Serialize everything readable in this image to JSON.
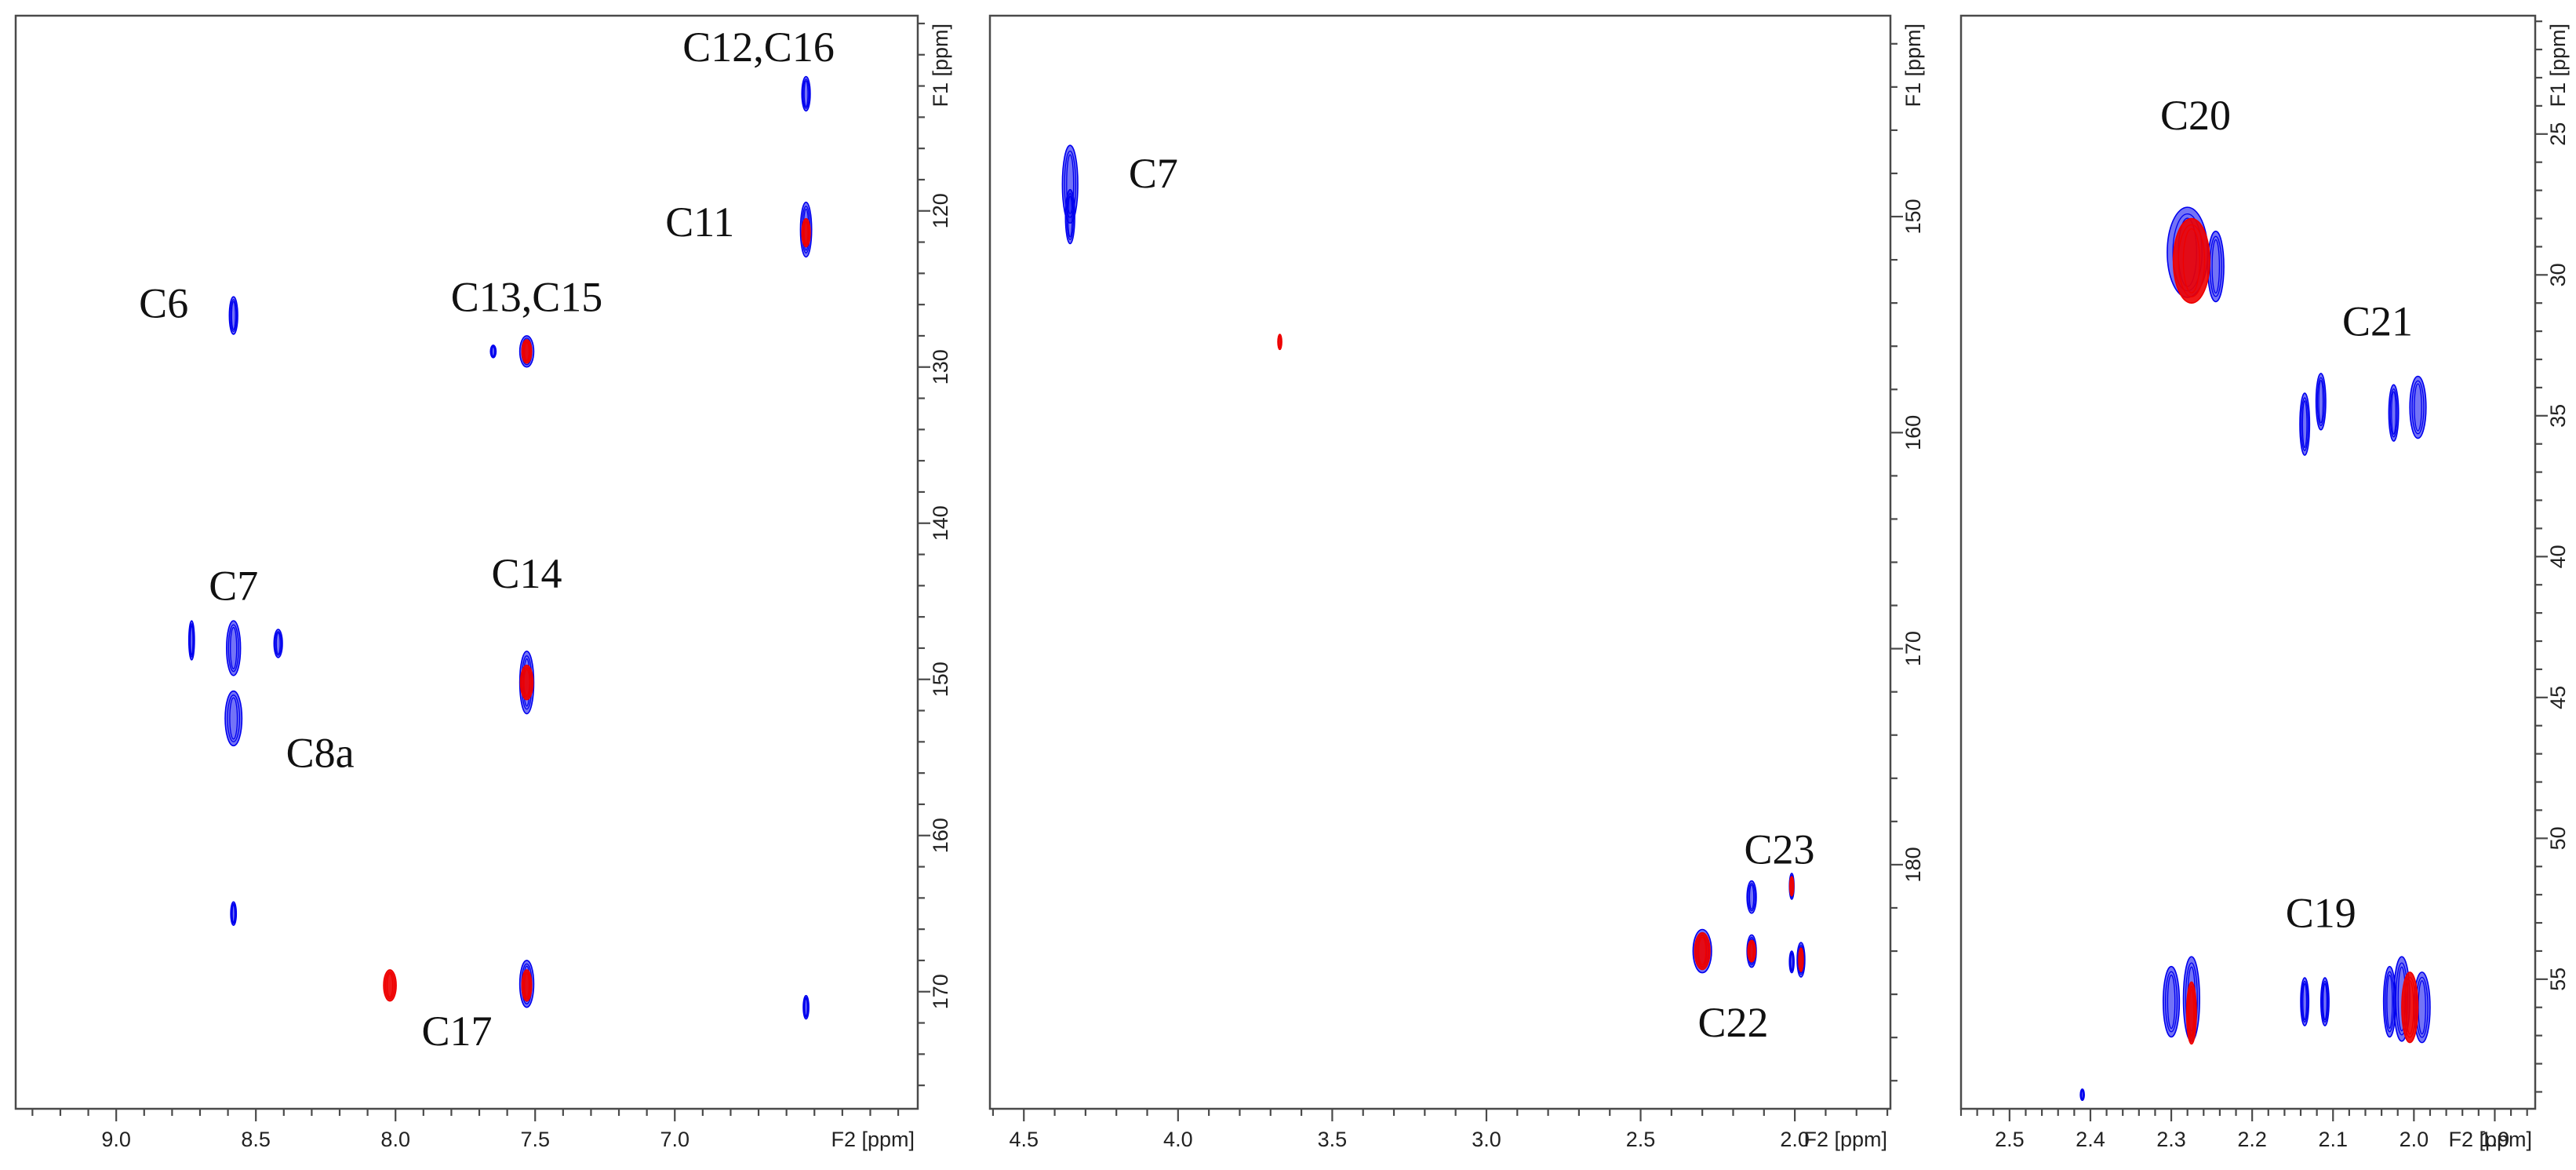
{
  "colors": {
    "positive": "#0000ee",
    "negative": "#ee0000",
    "frame": "#4a4a4a"
  },
  "chart_data": [
    {
      "type": "scatter",
      "panel": "left",
      "x_axis_label": "F2 [ppm]",
      "y_axis_label": "F1 [ppm]",
      "xlim": [
        9.36,
        6.13
      ],
      "ylim": [
        107.5,
        177.5
      ],
      "x_ticks": [
        "9.0",
        "8.5",
        "8.0",
        "7.5",
        "7.0"
      ],
      "y_ticks": [
        "120",
        "130",
        "140",
        "150",
        "160",
        "170"
      ],
      "grid": false,
      "series": [
        {
          "color": "blue",
          "points": [
            {
              "x": 6.53,
              "y": 112.5,
              "w": 0.03,
              "h": 2.2
            },
            {
              "x": 6.53,
              "y": 121.2,
              "w": 0.04,
              "h": 3.5
            },
            {
              "x": 8.58,
              "y": 126.7,
              "w": 0.03,
              "h": 2.4
            },
            {
              "x": 7.65,
              "y": 129.0,
              "w": 0.02,
              "h": 0.8
            },
            {
              "x": 7.53,
              "y": 129.0,
              "w": 0.05,
              "h": 2.0
            },
            {
              "x": 8.73,
              "y": 147.5,
              "w": 0.02,
              "h": 2.5
            },
            {
              "x": 8.58,
              "y": 148.0,
              "w": 0.05,
              "h": 3.5
            },
            {
              "x": 8.42,
              "y": 147.7,
              "w": 0.03,
              "h": 1.8
            },
            {
              "x": 8.58,
              "y": 152.5,
              "w": 0.06,
              "h": 3.5
            },
            {
              "x": 7.53,
              "y": 150.2,
              "w": 0.05,
              "h": 4.0
            },
            {
              "x": 8.58,
              "y": 165.0,
              "w": 0.02,
              "h": 1.5
            },
            {
              "x": 7.53,
              "y": 169.5,
              "w": 0.05,
              "h": 3.0
            },
            {
              "x": 6.53,
              "y": 171.0,
              "w": 0.02,
              "h": 1.5
            }
          ]
        },
        {
          "color": "red",
          "points": [
            {
              "x": 6.53,
              "y": 121.4,
              "w": 0.03,
              "h": 1.8
            },
            {
              "x": 7.53,
              "y": 129.0,
              "w": 0.035,
              "h": 1.5
            },
            {
              "x": 7.53,
              "y": 150.2,
              "w": 0.045,
              "h": 2.2
            },
            {
              "x": 8.02,
              "y": 169.6,
              "w": 0.045,
              "h": 2.0
            },
            {
              "x": 7.53,
              "y": 169.6,
              "w": 0.035,
              "h": 2.0
            }
          ]
        }
      ],
      "annotations": [
        {
          "text": "C12,C16",
          "x": 6.7,
          "y": 109.8
        },
        {
          "text": "C11",
          "x": 6.91,
          "y": 121.0
        },
        {
          "text": "C6",
          "x": 8.83,
          "y": 126.2
        },
        {
          "text": "C13,C15",
          "x": 7.53,
          "y": 125.8
        },
        {
          "text": "C7",
          "x": 8.58,
          "y": 144.3
        },
        {
          "text": "C14",
          "x": 7.53,
          "y": 143.5
        },
        {
          "text": "C8a",
          "x": 8.27,
          "y": 155.0
        },
        {
          "text": "C17",
          "x": 7.78,
          "y": 172.8
        }
      ]
    },
    {
      "type": "scatter",
      "panel": "middle",
      "x_axis_label": "F2 [ppm]",
      "y_axis_label": "F1 [ppm]",
      "xlim": [
        4.61,
        1.69
      ],
      "ylim": [
        140.7,
        191.3
      ],
      "x_ticks": [
        "4.5",
        "4.0",
        "3.5",
        "3.0",
        "2.5",
        "2.0"
      ],
      "y_ticks": [
        "150",
        "160",
        "170",
        "180"
      ],
      "grid": false,
      "series": [
        {
          "color": "blue",
          "points": [
            {
              "x": 4.35,
              "y": 148.5,
              "w": 0.05,
              "h": 3.6
            },
            {
              "x": 4.35,
              "y": 150.0,
              "w": 0.03,
              "h": 2.5
            },
            {
              "x": 2.3,
              "y": 184.0,
              "w": 0.06,
              "h": 2.0
            },
            {
              "x": 2.14,
              "y": 181.5,
              "w": 0.03,
              "h": 1.5
            },
            {
              "x": 2.14,
              "y": 184.0,
              "w": 0.03,
              "h": 1.5
            },
            {
              "x": 2.01,
              "y": 181.0,
              "w": 0.015,
              "h": 1.2
            },
            {
              "x": 2.01,
              "y": 184.5,
              "w": 0.015,
              "h": 1.0
            },
            {
              "x": 1.98,
              "y": 184.4,
              "w": 0.025,
              "h": 1.6
            }
          ]
        },
        {
          "color": "red",
          "points": [
            {
              "x": 3.67,
              "y": 155.8,
              "w": 0.01,
              "h": 0.7
            },
            {
              "x": 2.3,
              "y": 184.0,
              "w": 0.05,
              "h": 1.7
            },
            {
              "x": 2.14,
              "y": 184.0,
              "w": 0.025,
              "h": 1.0
            },
            {
              "x": 2.01,
              "y": 181.0,
              "w": 0.01,
              "h": 0.9
            },
            {
              "x": 1.98,
              "y": 184.4,
              "w": 0.015,
              "h": 1.1
            }
          ]
        }
      ],
      "annotations": [
        {
          "text": "C7",
          "x": 4.08,
          "y": 148.2
        },
        {
          "text": "C23",
          "x": 2.05,
          "y": 179.5
        },
        {
          "text": "C22",
          "x": 2.2,
          "y": 187.5
        }
      ]
    },
    {
      "type": "scatter",
      "panel": "right",
      "x_axis_label": "F2 [ppm]",
      "y_axis_label": "F1 [ppm]",
      "xlim": [
        2.56,
        1.85
      ],
      "ylim": [
        20.8,
        59.6
      ],
      "x_ticks": [
        "2.5",
        "2.4",
        "2.3",
        "2.2",
        "2.1",
        "2.0",
        "1.9"
      ],
      "y_ticks": [
        "25",
        "30",
        "35",
        "40",
        "45",
        "50",
        "55"
      ],
      "grid": false,
      "series": [
        {
          "color": "blue",
          "points": [
            {
              "x": 2.28,
              "y": 29.2,
              "w": 0.05,
              "h": 3.2
            },
            {
              "x": 2.245,
              "y": 29.7,
              "w": 0.02,
              "h": 2.5
            },
            {
              "x": 2.135,
              "y": 35.3,
              "w": 0.012,
              "h": 2.2
            },
            {
              "x": 2.115,
              "y": 34.5,
              "w": 0.012,
              "h": 2.0
            },
            {
              "x": 2.025,
              "y": 34.9,
              "w": 0.012,
              "h": 2.0
            },
            {
              "x": 1.995,
              "y": 34.7,
              "w": 0.02,
              "h": 2.2
            },
            {
              "x": 2.3,
              "y": 55.8,
              "w": 0.02,
              "h": 2.5
            },
            {
              "x": 2.275,
              "y": 55.7,
              "w": 0.02,
              "h": 3.0
            },
            {
              "x": 2.135,
              "y": 55.8,
              "w": 0.01,
              "h": 1.7
            },
            {
              "x": 2.11,
              "y": 55.8,
              "w": 0.01,
              "h": 1.7
            },
            {
              "x": 2.03,
              "y": 55.8,
              "w": 0.015,
              "h": 2.5
            },
            {
              "x": 2.015,
              "y": 55.7,
              "w": 0.02,
              "h": 3.0
            },
            {
              "x": 1.99,
              "y": 56.0,
              "w": 0.02,
              "h": 2.5
            },
            {
              "x": 2.41,
              "y": 59.1,
              "w": 0.004,
              "h": 0.4
            }
          ]
        },
        {
          "color": "red",
          "points": [
            {
              "x": 2.275,
              "y": 29.5,
              "w": 0.045,
              "h": 3.0
            },
            {
              "x": 2.275,
              "y": 56.2,
              "w": 0.012,
              "h": 2.2
            },
            {
              "x": 2.005,
              "y": 56.0,
              "w": 0.02,
              "h": 2.5
            }
          ]
        }
      ],
      "annotations": [
        {
          "text": "C20",
          "x": 2.27,
          "y": 24.5
        },
        {
          "text": "C21",
          "x": 2.045,
          "y": 31.8
        },
        {
          "text": "C19",
          "x": 2.115,
          "y": 52.8
        }
      ]
    }
  ]
}
